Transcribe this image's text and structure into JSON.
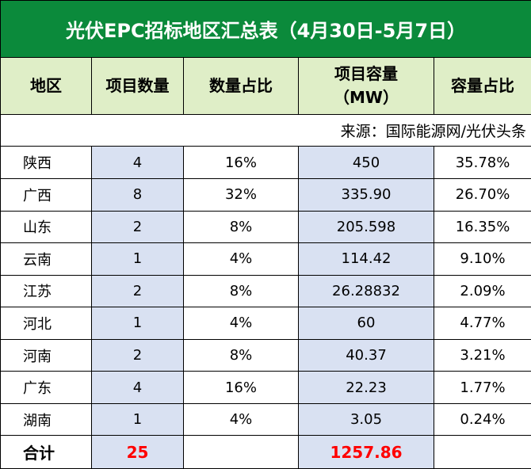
{
  "title": "光伏EPC招标地区汇总表（4月30日-5月7日）",
  "headers": {
    "region": "地区",
    "count": "项目数量",
    "count_share": "数量占比",
    "capacity_line1": "项目容量",
    "capacity_line2": "（MW）",
    "capacity_share": "容量占比"
  },
  "source": "来源：国际能源网/光伏头条",
  "rows": [
    {
      "region": "陕西",
      "count": "4",
      "count_share": "16%",
      "capacity": "450",
      "capacity_share": "35.78%"
    },
    {
      "region": "广西",
      "count": "8",
      "count_share": "32%",
      "capacity": "335.90",
      "capacity_share": "26.70%"
    },
    {
      "region": "山东",
      "count": "2",
      "count_share": "8%",
      "capacity": "205.598",
      "capacity_share": "16.35%"
    },
    {
      "region": "云南",
      "count": "1",
      "count_share": "4%",
      "capacity": "114.42",
      "capacity_share": "9.10%"
    },
    {
      "region": "江苏",
      "count": "2",
      "count_share": "8%",
      "capacity": "26.28832",
      "capacity_share": "2.09%"
    },
    {
      "region": "河北",
      "count": "1",
      "count_share": "4%",
      "capacity": "60",
      "capacity_share": "4.77%"
    },
    {
      "region": "河南",
      "count": "2",
      "count_share": "8%",
      "capacity": "40.37",
      "capacity_share": "3.21%"
    },
    {
      "region": "广东",
      "count": "4",
      "count_share": "16%",
      "capacity": "22.23",
      "capacity_share": "1.77%"
    },
    {
      "region": "湖南",
      "count": "1",
      "count_share": "4%",
      "capacity": "3.05",
      "capacity_share": "0.24%"
    }
  ],
  "total": {
    "label": "合计",
    "count": "25",
    "capacity": "1257.86"
  }
}
